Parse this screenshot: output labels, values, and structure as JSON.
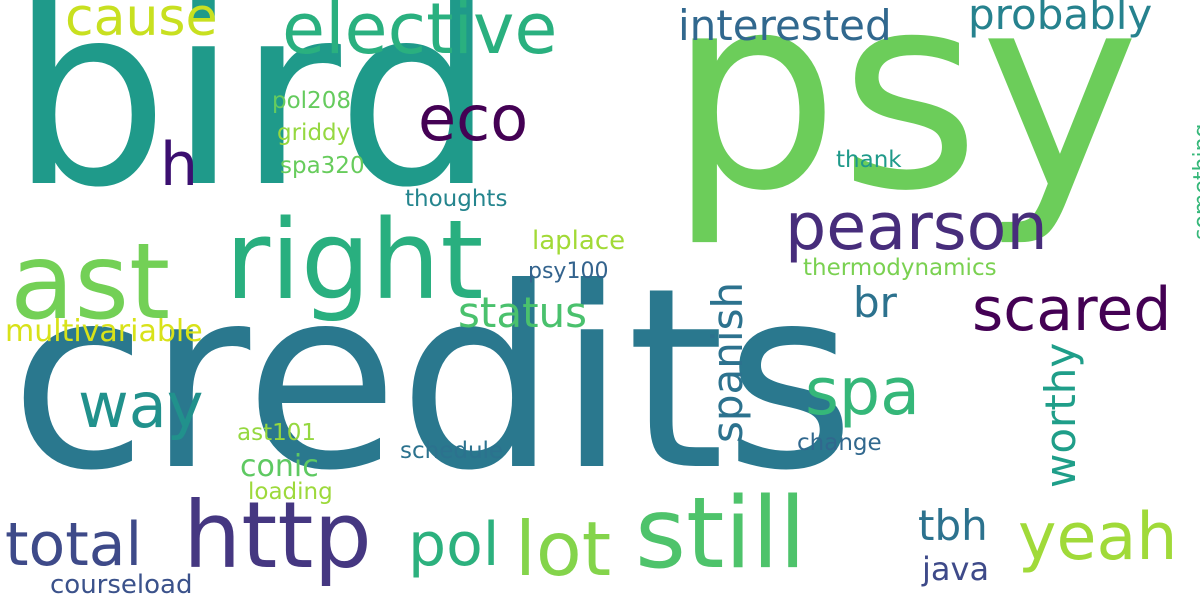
{
  "words": [
    {
      "text": "bird",
      "color": "#1f9a8a",
      "vertical": false
    },
    {
      "text": "psy",
      "color": "#6ccd5a",
      "vertical": false
    },
    {
      "text": "credits",
      "color": "#2a788e",
      "vertical": false
    },
    {
      "text": "right",
      "color": "#29af7f",
      "vertical": false
    },
    {
      "text": "ast",
      "color": "#73d056",
      "vertical": false
    },
    {
      "text": "elective",
      "color": "#2ab07f",
      "vertical": false
    },
    {
      "text": "cause",
      "color": "#c8e020",
      "vertical": false
    },
    {
      "text": "interested",
      "color": "#31688e",
      "vertical": false
    },
    {
      "text": "probably",
      "color": "#26828e",
      "vertical": false
    },
    {
      "text": "eco",
      "color": "#440154",
      "vertical": false
    },
    {
      "text": "h",
      "color": "#3b0f70",
      "vertical": false
    },
    {
      "text": "pearson",
      "color": "#472d7b",
      "vertical": false
    },
    {
      "text": "scared",
      "color": "#440154",
      "vertical": false
    },
    {
      "text": "br",
      "color": "#2c728e",
      "vertical": false
    },
    {
      "text": "status",
      "color": "#4ac16d",
      "vertical": false
    },
    {
      "text": "way",
      "color": "#21918c",
      "vertical": false
    },
    {
      "text": "spa",
      "color": "#35b779",
      "vertical": false
    },
    {
      "text": "spanish",
      "color": "#2c728e",
      "vertical": true
    },
    {
      "text": "worthy",
      "color": "#1f9e89",
      "vertical": true
    },
    {
      "text": "http",
      "color": "#453781",
      "vertical": false
    },
    {
      "text": "still",
      "color": "#4ec36b",
      "vertical": false
    },
    {
      "text": "total",
      "color": "#3e4a89",
      "vertical": false
    },
    {
      "text": "pol",
      "color": "#2cb17e",
      "vertical": false
    },
    {
      "text": "lot",
      "color": "#84d44b",
      "vertical": false
    },
    {
      "text": "yeah",
      "color": "#a0da39",
      "vertical": false
    },
    {
      "text": "tbh",
      "color": "#2c728e",
      "vertical": false
    },
    {
      "text": "java",
      "color": "#3e4a89",
      "vertical": false
    },
    {
      "text": "courseload",
      "color": "#3b528b",
      "vertical": false
    },
    {
      "text": "multivariable",
      "color": "#d8e219",
      "vertical": false
    },
    {
      "text": "thermodynamics",
      "color": "#7ad151",
      "vertical": false
    },
    {
      "text": "something",
      "color": "#35b779",
      "vertical": true
    },
    {
      "text": "pol208",
      "color": "#65cb5e",
      "vertical": false
    },
    {
      "text": "griddy",
      "color": "#95d840",
      "vertical": false
    },
    {
      "text": "spa320",
      "color": "#67cc5c",
      "vertical": false
    },
    {
      "text": "thoughts",
      "color": "#25858e",
      "vertical": false
    },
    {
      "text": "laplace",
      "color": "#a2da37",
      "vertical": false
    },
    {
      "text": "psy100",
      "color": "#33638d",
      "vertical": false
    },
    {
      "text": "ast101",
      "color": "#95d840",
      "vertical": false
    },
    {
      "text": "conic",
      "color": "#5ec962",
      "vertical": false
    },
    {
      "text": "loading",
      "color": "#9dd93b",
      "vertical": false
    },
    {
      "text": "schedule",
      "color": "#2c728e",
      "vertical": false
    },
    {
      "text": "change",
      "color": "#31688e",
      "vertical": false
    },
    {
      "text": "thank",
      "color": "#1f9a8a",
      "vertical": false
    }
  ]
}
